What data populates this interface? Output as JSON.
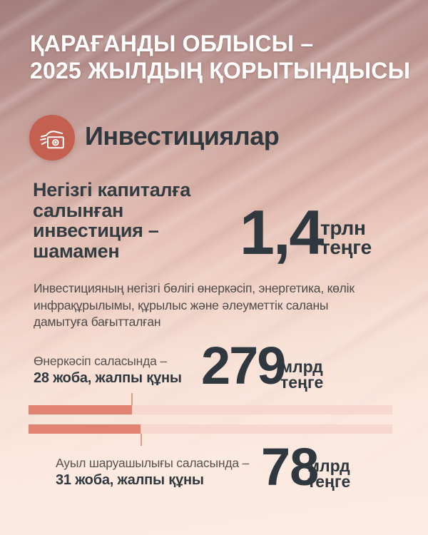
{
  "page": {
    "title_line1": "ҚАРАҒАНДЫ ОБЛЫСЫ –",
    "title_line2": "2025 ЖЫЛДЫҢ ҚОРЫТЫНДЫСЫ"
  },
  "section_header": {
    "icon": "money-in-hand-icon",
    "label": "Инвестициялар"
  },
  "headline": {
    "line1": "Негізгі капиталға",
    "line2": "салынған",
    "line3": "инвестиция –",
    "line4": "шамамен",
    "value": "1,4",
    "unit_line1": "трлн",
    "unit_line2": "теңге"
  },
  "description": {
    "line1": "Инвестицияның негізгі бөлігі өнеркәсіп, энергетика, көлік",
    "line2": "инфрақұрылымы, құрылыс және әлеуметтік саланы",
    "line3": "дамытуға бағытталған"
  },
  "stats": [
    {
      "label_line1": "Өнеркәсіп саласында –",
      "label_line2": "28 жоба, жалпы құны",
      "value": "279",
      "unit_line1": "млрд",
      "unit_line2": "теңге",
      "projects": 28,
      "bar_fill_pct": 28.4
    },
    {
      "label_line1": "Ауыл шаруашылығы саласында –",
      "label_line2": "31 жоба, жалпы құны",
      "value": "78",
      "unit_line1": "млрд",
      "unit_line2": "теңге",
      "projects": 31,
      "bar_fill_pct": 30.8
    }
  ],
  "colors": {
    "accent_coral": "#c4604f",
    "bar_fill": "#e08370",
    "bar_track": "#f7d8cf",
    "leader_line": "#dd9d89",
    "dark_text": "#2e383e",
    "body_text": "#4e4a49",
    "title_text": "#ffffff"
  }
}
